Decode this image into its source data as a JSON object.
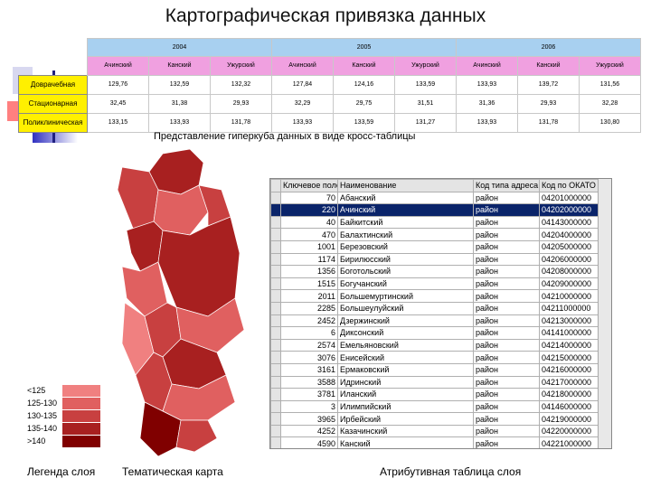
{
  "title": "Картографическая привязка данных",
  "cross_table": {
    "columns": [
      {
        "year": "2004",
        "districts": [
          "Ачинский",
          "Канский",
          "Ужурский"
        ]
      },
      {
        "year": "2005",
        "districts": [
          "Ачинский",
          "Канский",
          "Ужурский"
        ]
      },
      {
        "year": "2006",
        "districts": [
          "Ачинский",
          "Канский",
          "Ужурский"
        ]
      }
    ],
    "rows": [
      {
        "label": "Доврачебная",
        "cells": [
          "129,76",
          "132,59",
          "132,32",
          "127,84",
          "124,16",
          "133,59",
          "133,93",
          "139,72",
          "131,56"
        ]
      },
      {
        "label": "Стационарная",
        "cells": [
          "32,45",
          "31,38",
          "29,93",
          "32,29",
          "29,75",
          "31,51",
          "31,36",
          "29,93",
          "32,28"
        ]
      },
      {
        "label": "Поликлиническая",
        "cells": [
          "133,15",
          "133,93",
          "131,78",
          "133,93",
          "133,59",
          "131,27",
          "133,93",
          "131,78",
          "130,80"
        ]
      }
    ],
    "caption": "Представление гиперкуба данных в виде кросс-таблицы"
  },
  "legend": {
    "items": [
      {
        "label": "<125",
        "color": "#f08080"
      },
      {
        "label": "125-130",
        "color": "#e06060"
      },
      {
        "label": "130-135",
        "color": "#c84040"
      },
      {
        "label": "135-140",
        "color": "#a82020"
      },
      {
        "label": ">140",
        "color": "#800000"
      }
    ],
    "caption": "Легенда слоя"
  },
  "map": {
    "caption": "Тематическая карта"
  },
  "attribute_table": {
    "columns": [
      "Ключевое поле",
      "Наименование",
      "Код типа адреса",
      "Код по ОКАТО"
    ],
    "selected_row": 1,
    "rows": [
      [
        "70",
        "Абанский",
        "район",
        "04201000000"
      ],
      [
        "220",
        "Ачинский",
        "район",
        "04202000000"
      ],
      [
        "40",
        "Байкитский",
        "район",
        "04143000000"
      ],
      [
        "470",
        "Балахтинский",
        "район",
        "04204000000"
      ],
      [
        "1001",
        "Березовский",
        "район",
        "04205000000"
      ],
      [
        "1174",
        "Бирилюсский",
        "район",
        "04206000000"
      ],
      [
        "1356",
        "Боготольский",
        "район",
        "04208000000"
      ],
      [
        "1515",
        "Богучанский",
        "район",
        "04209000000"
      ],
      [
        "2011",
        "Большемуртинский",
        "район",
        "04210000000"
      ],
      [
        "2285",
        "Большеулуйский",
        "район",
        "04211000000"
      ],
      [
        "2452",
        "Дзержинский",
        "район",
        "04213000000"
      ],
      [
        "6",
        "Диксонский",
        "район",
        "04141000000"
      ],
      [
        "2574",
        "Емельяновский",
        "район",
        "04214000000"
      ],
      [
        "3076",
        "Енисейский",
        "район",
        "04215000000"
      ],
      [
        "3161",
        "Ермаковский",
        "район",
        "04216000000"
      ],
      [
        "3588",
        "Идринский",
        "район",
        "04217000000"
      ],
      [
        "3781",
        "Иланский",
        "район",
        "04218000000"
      ],
      [
        "3",
        "Илимпийский",
        "район",
        "04146000000"
      ],
      [
        "3965",
        "Ирбейский",
        "район",
        "04219000000"
      ],
      [
        "4252",
        "Казачинский",
        "район",
        "04220000000"
      ],
      [
        "4590",
        "Канский",
        "район",
        "04221000000"
      ]
    ],
    "caption": "Атрибутивная таблица слоя"
  }
}
